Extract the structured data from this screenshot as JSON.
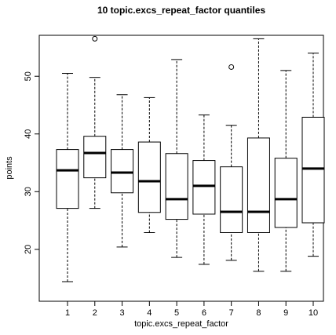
{
  "chart_data": {
    "type": "boxplot",
    "title": "10 topic.excs_repeat_factor quantiles",
    "x_label": "topic.excs_repeat_factor",
    "y_label": "points",
    "categories": [
      "1",
      "2",
      "3",
      "4",
      "5",
      "6",
      "7",
      "8",
      "9",
      "10"
    ],
    "boxes": [
      {
        "low": 14.4,
        "q1": 27.1,
        "median": 33.7,
        "q3": 37.3,
        "high": 50.5,
        "outliers": []
      },
      {
        "low": 27.1,
        "q1": 32.4,
        "median": 36.7,
        "q3": 39.6,
        "high": 49.8,
        "outliers": [
          56.5
        ]
      },
      {
        "low": 20.4,
        "q1": 29.8,
        "median": 33.3,
        "q3": 37.3,
        "high": 46.8,
        "outliers": []
      },
      {
        "low": 22.9,
        "q1": 26.4,
        "median": 31.8,
        "q3": 38.6,
        "high": 46.3,
        "outliers": []
      },
      {
        "low": 18.6,
        "q1": 25.2,
        "median": 28.7,
        "q3": 36.6,
        "high": 52.9,
        "outliers": []
      },
      {
        "low": 17.4,
        "q1": 26.1,
        "median": 31.0,
        "q3": 35.4,
        "high": 43.3,
        "outliers": []
      },
      {
        "low": 18.1,
        "q1": 22.9,
        "median": 26.5,
        "q3": 34.3,
        "high": 41.5,
        "outliers": [
          51.6
        ]
      },
      {
        "low": 16.2,
        "q1": 22.9,
        "median": 26.5,
        "q3": 39.3,
        "high": 56.5,
        "outliers": []
      },
      {
        "low": 16.2,
        "q1": 23.8,
        "median": 28.7,
        "q3": 35.8,
        "high": 51.0,
        "outliers": []
      },
      {
        "low": 18.8,
        "q1": 24.6,
        "median": 34.0,
        "q3": 42.9,
        "high": 54.0,
        "outliers": []
      }
    ],
    "ylim": [
      11,
      57.1
    ],
    "yticks": [
      20,
      30,
      40,
      50
    ],
    "color": "#000000"
  }
}
